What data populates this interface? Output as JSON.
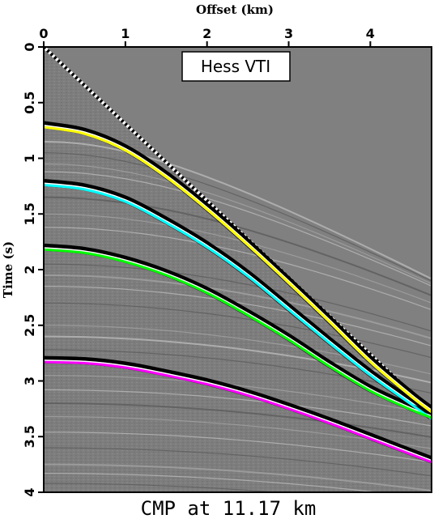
{
  "chart_data": {
    "type": "line",
    "title": "",
    "caption": "CMP at 11.17 km",
    "annotation": "Hess VTI",
    "xlabel": "Offset (km)",
    "ylabel": "Time (s)",
    "xlim": [
      0,
      4.75
    ],
    "ylim": [
      4,
      0
    ],
    "x_ticks": [
      0,
      1,
      2,
      3,
      4
    ],
    "y_ticks": [
      0,
      0.5,
      1,
      1.5,
      2,
      2.5,
      3,
      3.5,
      4
    ],
    "x_tick_labels": [
      "0",
      "1",
      "2",
      "3",
      "4"
    ],
    "y_tick_labels": [
      "0",
      "0.5",
      "1",
      "1.5",
      "2",
      "2.5",
      "3",
      "3.5",
      "4"
    ],
    "x_axis_position": "top",
    "y_direction": "down",
    "grid": false,
    "legend": "none",
    "background_color": "#808080",
    "series": [
      {
        "color": "#ffff00",
        "x": [
          0,
          0.5,
          1,
          1.5,
          2,
          2.5,
          3,
          3.5,
          4,
          4.5,
          4.75
        ],
        "values": [
          0.72,
          0.78,
          0.93,
          1.17,
          1.46,
          1.78,
          2.12,
          2.47,
          2.83,
          3.14,
          3.28
        ]
      },
      {
        "color": "#00ffff",
        "x": [
          0,
          0.5,
          1,
          1.5,
          2,
          2.5,
          3,
          3.5,
          4,
          4.5,
          4.75
        ],
        "values": [
          1.24,
          1.28,
          1.39,
          1.58,
          1.8,
          2.06,
          2.36,
          2.66,
          2.95,
          3.21,
          3.34
        ]
      },
      {
        "color": "#00ff00",
        "x": [
          0,
          0.5,
          1,
          1.5,
          2,
          2.5,
          3,
          3.5,
          4,
          4.5,
          4.75
        ],
        "values": [
          1.82,
          1.85,
          1.93,
          2.05,
          2.21,
          2.41,
          2.63,
          2.87,
          3.09,
          3.26,
          3.33
        ]
      },
      {
        "color": "#ff00ff",
        "x": [
          0,
          0.5,
          1,
          1.5,
          2,
          2.5,
          3,
          3.5,
          4,
          4.5,
          4.75
        ],
        "values": [
          2.83,
          2.84,
          2.88,
          2.95,
          3.03,
          3.13,
          3.25,
          3.38,
          3.52,
          3.66,
          3.73
        ]
      }
    ]
  }
}
